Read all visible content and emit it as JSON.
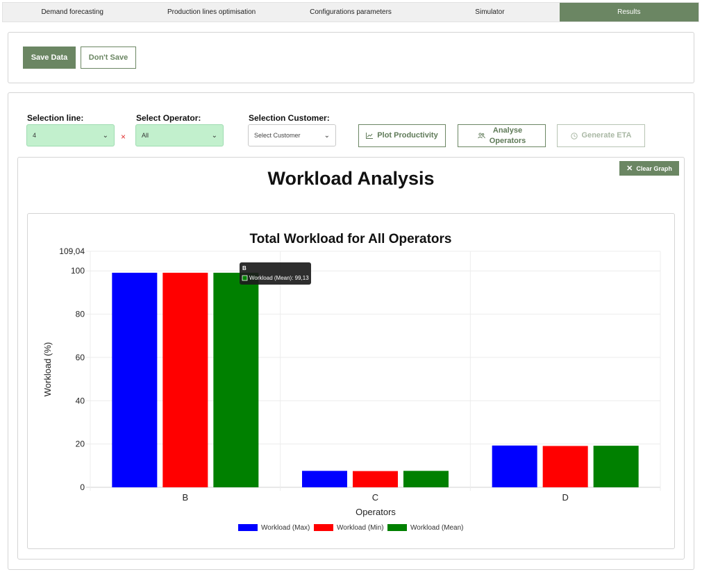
{
  "nav": {
    "tabs": [
      {
        "label": "Demand forecasting",
        "active": false
      },
      {
        "label": "Production lines optimisation",
        "active": false
      },
      {
        "label": "Configurations parameters",
        "active": false
      },
      {
        "label": "Simulator",
        "active": false
      },
      {
        "label": "Results",
        "active": true
      }
    ]
  },
  "save": {
    "save_label": "Save Data",
    "dont_save_label": "Don't Save"
  },
  "filters": {
    "line_label": "Selection line:",
    "line_value": "4",
    "clear_symbol": "×",
    "operator_label": "Select Operator:",
    "operator_value": "All",
    "customer_label": "Selection Customer:",
    "customer_placeholder": "Select Customer"
  },
  "actions": {
    "plot_productivity": "Plot Productivity",
    "analyse_operators_1": "Analyse",
    "analyse_operators_2": "Operators",
    "generate_eta": "Generate ETA"
  },
  "graph": {
    "title": "Workload Analysis",
    "clear_label": "Clear Graph"
  },
  "colors": {
    "accent": "#6b8663",
    "max": "#0000ff",
    "min": "#ff0000",
    "mean": "#008000"
  },
  "chart_data": {
    "type": "bar",
    "title": "Total Workload for All Operators",
    "xlabel": "Operators",
    "ylabel": "Workload (%)",
    "categories": [
      "B",
      "C",
      "D"
    ],
    "series": [
      {
        "name": "Workload (Max)",
        "color": "#0000ff",
        "values": [
          99.13,
          7.6,
          19.3
        ]
      },
      {
        "name": "Workload (Min)",
        "color": "#ff0000",
        "values": [
          99.13,
          7.5,
          19.1
        ]
      },
      {
        "name": "Workload (Mean)",
        "color": "#008000",
        "values": [
          99.13,
          7.6,
          19.2
        ]
      }
    ],
    "ylim": [
      0,
      109.04
    ],
    "yticks": [
      0,
      20,
      40,
      60,
      80,
      100
    ],
    "ymax_label": "109,04",
    "grid": true,
    "legend": "bottom",
    "tooltip": {
      "title": "B",
      "text": "Workload (Mean): 99,13"
    }
  }
}
